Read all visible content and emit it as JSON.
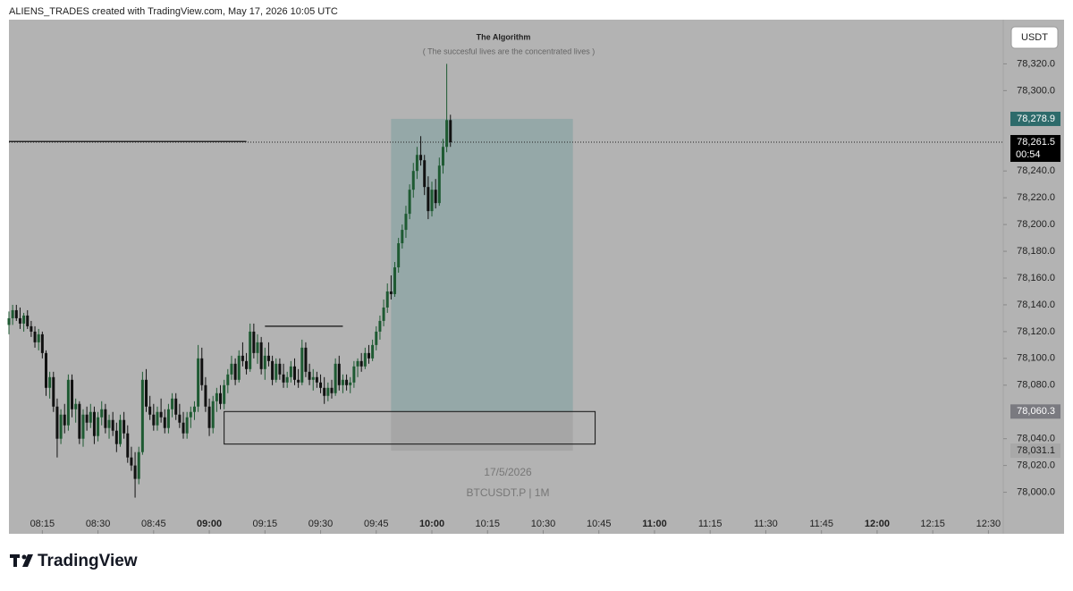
{
  "header": "ALIENS_TRADES created with TradingView.com, May 17, 2026 10:05 UTC",
  "footer": {
    "logo": "TradingView"
  },
  "chart_data": {
    "type": "candlestick",
    "title": "The Algorithm",
    "subtitle": "( The succesful lives are the concentrated lives )",
    "currency": "USDT",
    "watermark_date": "17/5/2026",
    "watermark_symbol": "BTCUSDT.P | 1M",
    "up_color": "#1e5a32",
    "down_color": "#111111",
    "background": "#b3b3b3",
    "xlim": [
      "08:06",
      "12:34"
    ],
    "ylim": [
      77969,
      78353
    ],
    "xticks": [
      "08:15",
      "08:30",
      "08:45",
      "09:00",
      "09:15",
      "09:30",
      "09:45",
      "10:00",
      "10:15",
      "10:30",
      "10:45",
      "11:00",
      "11:15",
      "11:30",
      "11:45",
      "12:00",
      "12:15",
      "12:30"
    ],
    "yticks": [
      {
        "value": 78320,
        "label": "78,320.0"
      },
      {
        "value": 78300,
        "label": "78,300.0"
      },
      {
        "value": 78240,
        "label": "78,240.0"
      },
      {
        "value": 78220,
        "label": "78,220.0"
      },
      {
        "value": 78200,
        "label": "78,200.0"
      },
      {
        "value": 78180,
        "label": "78,180.0"
      },
      {
        "value": 78160,
        "label": "78,160.0"
      },
      {
        "value": 78140,
        "label": "78,140.0"
      },
      {
        "value": 78120,
        "label": "78,120.0"
      },
      {
        "value": 78100,
        "label": "78,100.0"
      },
      {
        "value": 78080,
        "label": "78,080.0"
      },
      {
        "value": 78040,
        "label": "78,040.0"
      },
      {
        "value": 78020,
        "label": "78,020.0"
      },
      {
        "value": 78000,
        "label": "78,000.0"
      }
    ],
    "price_labels": [
      {
        "value": 78278.9,
        "label": "78,278.9",
        "color": "#2d6b6b"
      },
      {
        "value": 78261.5,
        "label": "78,261.5",
        "color": "#000000"
      },
      {
        "value": 78060.3,
        "label": "78,060.3",
        "color": "#7a7a80"
      },
      {
        "value": 78031.1,
        "label": "78,031.1",
        "color": "#a8a8a8"
      }
    ],
    "countdown": "00:54",
    "position": {
      "start": "09:49",
      "end": "10:38",
      "target": 78278.9,
      "entry": 78060.3,
      "stop": 78031.1
    },
    "box": {
      "start": "09:04",
      "end": "10:44",
      "top": 78060.3,
      "bottom": 78036
    },
    "lines": [
      {
        "start": "08:06",
        "end": "09:10",
        "value": 78262
      },
      {
        "start": "09:15",
        "end": "09:36",
        "value": 78124
      }
    ],
    "x": [
      "08:06",
      "08:07",
      "08:08",
      "08:09",
      "08:10",
      "08:11",
      "08:12",
      "08:13",
      "08:14",
      "08:15",
      "08:16",
      "08:17",
      "08:18",
      "08:19",
      "08:20",
      "08:21",
      "08:22",
      "08:23",
      "08:24",
      "08:25",
      "08:26",
      "08:27",
      "08:28",
      "08:29",
      "08:30",
      "08:31",
      "08:32",
      "08:33",
      "08:34",
      "08:35",
      "08:36",
      "08:37",
      "08:38",
      "08:39",
      "08:40",
      "08:41",
      "08:42",
      "08:43",
      "08:44",
      "08:45",
      "08:46",
      "08:47",
      "08:48",
      "08:49",
      "08:50",
      "08:51",
      "08:52",
      "08:53",
      "08:54",
      "08:55",
      "08:56",
      "08:57",
      "08:58",
      "08:59",
      "09:00",
      "09:01",
      "09:02",
      "09:03",
      "09:04",
      "09:05",
      "09:06",
      "09:07",
      "09:08",
      "09:09",
      "09:10",
      "09:11",
      "09:12",
      "09:13",
      "09:14",
      "09:15",
      "09:16",
      "09:17",
      "09:18",
      "09:19",
      "09:20",
      "09:21",
      "09:22",
      "09:23",
      "09:24",
      "09:25",
      "09:26",
      "09:27",
      "09:28",
      "09:29",
      "09:30",
      "09:31",
      "09:32",
      "09:33",
      "09:34",
      "09:35",
      "09:36",
      "09:37",
      "09:38",
      "09:39",
      "09:40",
      "09:41",
      "09:42",
      "09:43",
      "09:44",
      "09:45",
      "09:46",
      "09:47",
      "09:48",
      "09:49",
      "09:50",
      "09:51",
      "09:52",
      "09:53",
      "09:54",
      "09:55",
      "09:56",
      "09:57",
      "09:58",
      "09:59",
      "10:00",
      "10:01",
      "10:02",
      "10:03",
      "10:04",
      "10:05"
    ],
    "open": [
      78125,
      78130,
      78136,
      78130,
      78126,
      78132,
      78124,
      78120,
      78112,
      78118,
      78104,
      78078,
      78086,
      78064,
      78040,
      78058,
      78050,
      78084,
      78062,
      78066,
      78040,
      78058,
      78052,
      78060,
      78042,
      78056,
      78062,
      78048,
      78054,
      78046,
      78036,
      78054,
      78044,
      78026,
      78020,
      78010,
      78030,
      78084,
      78064,
      78058,
      78050,
      78060,
      78056,
      78048,
      78062,
      78070,
      78058,
      78052,
      78044,
      78056,
      78060,
      78064,
      78100,
      78080,
      78064,
      78048,
      78068,
      78074,
      78066,
      78080,
      78088,
      78096,
      78084,
      78102,
      78098,
      78092,
      78120,
      78104,
      78112,
      78092,
      78102,
      78098,
      78084,
      78096,
      78088,
      78082,
      78086,
      78094,
      78084,
      78082,
      78108,
      78090,
      78084,
      78086,
      78082,
      78078,
      78072,
      78078,
      78074,
      78096,
      78080,
      78084,
      78080,
      78082,
      78094,
      78098,
      78094,
      78104,
      78100,
      78110,
      78120,
      78128,
      78138,
      78150,
      78148,
      78168,
      78186,
      78196,
      78208,
      78226,
      78240,
      78252,
      78248,
      78228,
      78210,
      78226,
      78216,
      78244,
      78258,
      78278
    ],
    "high": [
      78135,
      78140,
      78140,
      78138,
      78134,
      78136,
      78128,
      78124,
      78122,
      78120,
      78106,
      78090,
      78090,
      78070,
      78062,
      78066,
      78088,
      78088,
      78070,
      78068,
      78062,
      78064,
      78066,
      78064,
      78060,
      78068,
      78066,
      78058,
      78060,
      78052,
      78058,
      78060,
      78050,
      78034,
      78030,
      78034,
      78090,
      78092,
      78072,
      78066,
      78064,
      78070,
      78062,
      78066,
      78074,
      78074,
      78066,
      78060,
      78060,
      78064,
      78068,
      78110,
      78108,
      78086,
      78070,
      78072,
      78078,
      78080,
      78084,
      78092,
      78102,
      78100,
      78106,
      78112,
      78104,
      78126,
      78126,
      78118,
      78116,
      78108,
      78112,
      78102,
      78100,
      78100,
      78096,
      78090,
      78098,
      78100,
      78092,
      78114,
      78112,
      78096,
      78092,
      78090,
      78088,
      78086,
      78082,
      78084,
      78100,
      78102,
      78088,
      78088,
      78086,
      78098,
      78100,
      78104,
      78108,
      78110,
      78114,
      78124,
      78132,
      78144,
      78156,
      78162,
      78172,
      78190,
      78200,
      78214,
      78230,
      78246,
      78258,
      78266,
      78252,
      78236,
      78232,
      78234,
      78250,
      78264,
      78320,
      78282
    ],
    "low": [
      78118,
      78125,
      78128,
      78122,
      78120,
      78122,
      78116,
      78108,
      78106,
      78100,
      78072,
      78070,
      78060,
      78026,
      78036,
      78044,
      78046,
      78056,
      78052,
      78036,
      78034,
      78046,
      78048,
      78036,
      78038,
      78050,
      78044,
      78040,
      78042,
      78030,
      78034,
      78040,
      78022,
      78016,
      77996,
      78006,
      78028,
      78060,
      78054,
      78046,
      78046,
      78052,
      78044,
      78044,
      78056,
      78054,
      78048,
      78040,
      78040,
      78048,
      78054,
      78060,
      78076,
      78060,
      78042,
      78044,
      78060,
      78062,
      78062,
      78074,
      78084,
      78080,
      78082,
      78094,
      78088,
      78090,
      78100,
      78096,
      78088,
      78084,
      78094,
      78080,
      78082,
      78084,
      78078,
      78078,
      78082,
      78080,
      78078,
      78080,
      78086,
      78080,
      78076,
      78078,
      78074,
      78066,
      78068,
      78070,
      78072,
      78076,
      78074,
      78076,
      78074,
      78078,
      78086,
      78090,
      78092,
      78096,
      78098,
      78106,
      78114,
      78124,
      78134,
      78144,
      78146,
      78164,
      78182,
      78190,
      78204,
      78220,
      78234,
      78244,
      78222,
      78204,
      78206,
      78212,
      78214,
      78238,
      78254,
      78258
    ],
    "close": [
      78130,
      78136,
      78130,
      78126,
      78132,
      78124,
      78120,
      78112,
      78118,
      78104,
      78078,
      78086,
      78064,
      78040,
      78058,
      78050,
      78084,
      78062,
      78066,
      78040,
      78058,
      78052,
      78060,
      78042,
      78056,
      78062,
      78048,
      78054,
      78046,
      78036,
      78054,
      78044,
      78026,
      78020,
      78010,
      78030,
      78084,
      78064,
      78058,
      78050,
      78060,
      78056,
      78048,
      78062,
      78070,
      78058,
      78052,
      78044,
      78056,
      78060,
      78064,
      78100,
      78080,
      78064,
      78048,
      78068,
      78074,
      78066,
      78080,
      78088,
      78096,
      78084,
      78102,
      78098,
      78092,
      78120,
      78104,
      78112,
      78092,
      78102,
      78098,
      78084,
      78096,
      78088,
      78082,
      78086,
      78094,
      78084,
      78082,
      78108,
      78090,
      78084,
      78086,
      78082,
      78078,
      78072,
      78078,
      78074,
      78096,
      78080,
      78084,
      78080,
      78082,
      78094,
      78098,
      78094,
      78104,
      78100,
      78110,
      78120,
      78128,
      78138,
      78150,
      78148,
      78168,
      78186,
      78196,
      78208,
      78226,
      78240,
      78252,
      78248,
      78228,
      78210,
      78226,
      78216,
      78244,
      78258,
      78278,
      78261.5
    ]
  }
}
